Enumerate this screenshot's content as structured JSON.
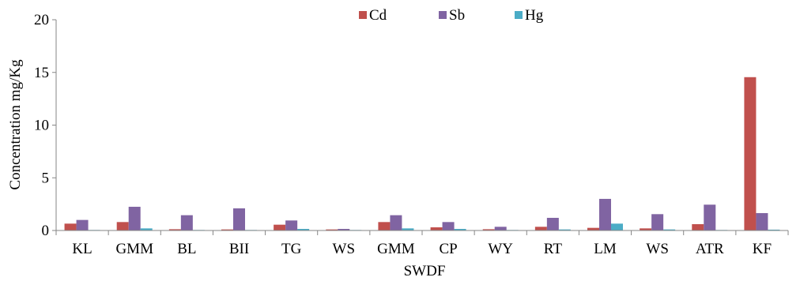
{
  "chart_data": {
    "type": "bar",
    "title": "",
    "xlabel": "SWDF",
    "ylabel": "Concentration mg/Kg",
    "ylim": [
      0,
      20
    ],
    "yticks": [
      0,
      5,
      10,
      15,
      20
    ],
    "grid": false,
    "legend_position": "top-center",
    "categories": [
      "KL",
      "GMM",
      "BL",
      "BII",
      "TG",
      "WS",
      "GMM",
      "CP",
      "WY",
      "RT",
      "LM",
      "WS",
      "ATR",
      "KF"
    ],
    "series": [
      {
        "name": "Cd",
        "color": "#c0504d",
        "values": [
          0.65,
          0.8,
          0.12,
          0.1,
          0.55,
          0.1,
          0.8,
          0.3,
          0.12,
          0.35,
          0.25,
          0.2,
          0.6,
          14.55
        ]
      },
      {
        "name": "Sb",
        "color": "#8064a2",
        "values": [
          1.0,
          2.25,
          1.45,
          2.1,
          0.95,
          0.15,
          1.45,
          0.8,
          0.35,
          1.2,
          3.0,
          1.55,
          2.45,
          1.65
        ]
      },
      {
        "name": "Hg",
        "color": "#4bacc6",
        "values": [
          0.05,
          0.2,
          0.05,
          0.05,
          0.15,
          0.05,
          0.2,
          0.15,
          0.05,
          0.1,
          0.65,
          0.1,
          0.05,
          0.08
        ]
      }
    ]
  }
}
